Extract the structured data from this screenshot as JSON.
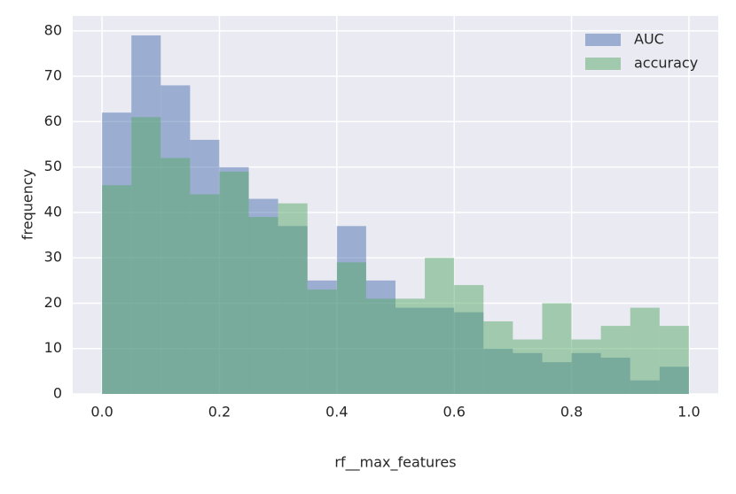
{
  "chart_data": {
    "type": "histogram",
    "xlabel": "rf__max_features",
    "ylabel": "frequency",
    "bins": [
      0,
      0.05,
      0.1,
      0.15,
      0.2,
      0.25,
      0.3,
      0.35,
      0.4,
      0.45,
      0.5,
      0.55,
      0.6,
      0.65,
      0.7,
      0.75,
      0.8,
      0.85,
      0.9,
      0.95,
      1
    ],
    "series": [
      {
        "name": "AUC",
        "color": "#4c72b0",
        "values": [
          62,
          79,
          68,
          56,
          50,
          43,
          37,
          25,
          37,
          25,
          19,
          19,
          18,
          10,
          9,
          7,
          9,
          8,
          3,
          6
        ]
      },
      {
        "name": "accuracy",
        "color": "#55a868",
        "values": [
          46,
          61,
          52,
          44,
          49,
          39,
          42,
          23,
          29,
          21,
          21,
          30,
          24,
          16,
          12,
          20,
          12,
          15,
          19,
          15
        ]
      }
    ],
    "xlim": [
      -0.05,
      1.05
    ],
    "ylim": [
      0,
      83.3
    ],
    "xticks": [
      {
        "value": 0,
        "label": "0.0"
      },
      0.2,
      0.4,
      0.6,
      0.8,
      {
        "value": 1,
        "label": "1.0"
      }
    ],
    "yticks": [
      0,
      10,
      20,
      30,
      40,
      50,
      60,
      70,
      80
    ],
    "grid": true,
    "legend": "upper right",
    "opacity": 0.5
  }
}
